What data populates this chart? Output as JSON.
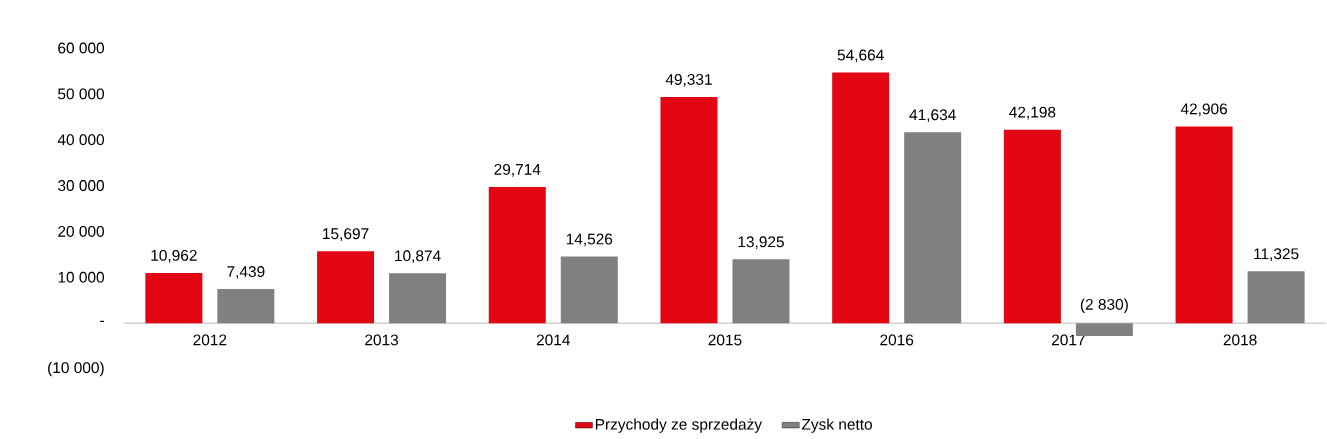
{
  "chart_data": {
    "type": "bar",
    "categories": [
      "2012",
      "2013",
      "2014",
      "2015",
      "2016",
      "2017",
      "2018"
    ],
    "series": [
      {
        "name": "Przychody ze sprzedaży",
        "color": "#e30613",
        "values": [
          10962,
          15697,
          29714,
          49331,
          54664,
          42198,
          42906
        ],
        "value_labels": [
          "10,962",
          "15,697",
          "29,714",
          "49,331",
          "54,664",
          "42,198",
          "42,906"
        ]
      },
      {
        "name": "Zysk netto",
        "color": "#808080",
        "values": [
          7439,
          10874,
          14526,
          13925,
          41634,
          -2830,
          11325
        ],
        "value_labels": [
          "7,439",
          "10,874",
          "14,526",
          "13,925",
          "41,634",
          "(2 830)",
          "11,325"
        ]
      }
    ],
    "ylim": [
      -10000,
      60000
    ],
    "yticks": [
      {
        "value": -10000,
        "label": "(10 000)"
      },
      {
        "value": 0,
        "label": "-"
      },
      {
        "value": 10000,
        "label": "10 000"
      },
      {
        "value": 20000,
        "label": "20 000"
      },
      {
        "value": 30000,
        "label": "30 000"
      },
      {
        "value": 40000,
        "label": "40 000"
      },
      {
        "value": 50000,
        "label": "50 000"
      },
      {
        "value": 60000,
        "label": "60 000"
      }
    ],
    "grid": false,
    "legend": "bottom"
  }
}
